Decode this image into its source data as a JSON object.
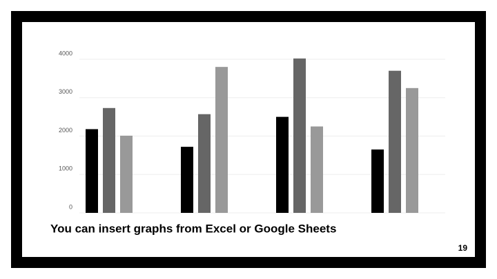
{
  "chart_data": {
    "type": "bar",
    "title": "You can insert graphs from Excel or Google Sheets",
    "categories": [
      null,
      null,
      null,
      null
    ],
    "series": [
      {
        "color": "#000000",
        "values": [
          2180,
          1720,
          2500,
          1650
        ]
      },
      {
        "color": "#666666",
        "values": [
          2730,
          2570,
          4020,
          3700
        ]
      },
      {
        "color": "#999999",
        "values": [
          2010,
          3800,
          2250,
          3250
        ]
      }
    ],
    "ylim": [
      0,
      4000
    ],
    "yticks": [
      0,
      1000,
      2000,
      3000,
      4000
    ],
    "grid": true
  },
  "page_number": "19"
}
